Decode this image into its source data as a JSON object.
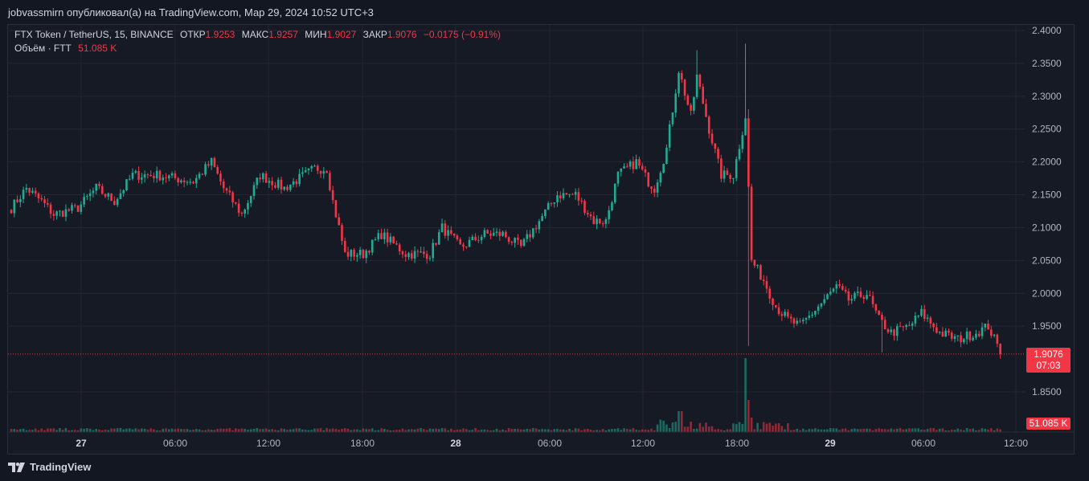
{
  "header": {
    "published": "jobvassmirn опубликовал(а) на TradingView.com, Мар 29, 2024 10:52 UTC+3"
  },
  "legend": {
    "symbol": "FTX Token / TetherUS, 15, BINANCE",
    "open_label": "ОТКР",
    "open": "1.9253",
    "high_label": "МАКС",
    "high": "1.9257",
    "low_label": "МИН",
    "low": "1.9027",
    "close_label": "ЗАКР",
    "close": "1.9076",
    "change": "−0.0175 (−0.91%)",
    "volume_label": "Объём · FTT",
    "volume": "51.085 K"
  },
  "price_tag": {
    "price": "1.9076",
    "countdown": "07:03"
  },
  "volume_tag": "51.085 K",
  "brand": "TradingView",
  "colors": {
    "up": "#22ab94",
    "down": "#f23645",
    "background": "#131722",
    "grid": "#242732"
  },
  "chart_data": {
    "type": "candlestick",
    "y_axis": {
      "ticks": [
        "2.4000",
        "2.3500",
        "2.3000",
        "2.2500",
        "2.2000",
        "2.1500",
        "2.1000",
        "2.0500",
        "2.0000",
        "1.9500",
        "1.8500"
      ],
      "range": [
        1.81,
        2.41
      ]
    },
    "x_axis": {
      "labels": [
        "27",
        "06:00",
        "12:00",
        "18:00",
        "28",
        "06:00",
        "12:00",
        "18:00",
        "29",
        "06:00",
        "12:00"
      ],
      "bold": [
        "27",
        "28",
        "29"
      ]
    },
    "last_price": 1.9076,
    "keyframes": [
      {
        "i": 0,
        "p": 2.13
      },
      {
        "i": 5,
        "p": 2.16
      },
      {
        "i": 10,
        "p": 2.14
      },
      {
        "i": 14,
        "p": 2.12
      },
      {
        "i": 22,
        "p": 2.13
      },
      {
        "i": 28,
        "p": 2.16
      },
      {
        "i": 34,
        "p": 2.14
      },
      {
        "i": 40,
        "p": 2.18
      },
      {
        "i": 48,
        "p": 2.18
      },
      {
        "i": 60,
        "p": 2.17
      },
      {
        "i": 66,
        "p": 2.2
      },
      {
        "i": 70,
        "p": 2.16
      },
      {
        "i": 76,
        "p": 2.12
      },
      {
        "i": 82,
        "p": 2.18
      },
      {
        "i": 90,
        "p": 2.16
      },
      {
        "i": 100,
        "p": 2.19
      },
      {
        "i": 104,
        "p": 2.19
      },
      {
        "i": 106,
        "p": 2.14
      },
      {
        "i": 110,
        "p": 2.06
      },
      {
        "i": 116,
        "p": 2.06
      },
      {
        "i": 122,
        "p": 2.09
      },
      {
        "i": 130,
        "p": 2.06
      },
      {
        "i": 138,
        "p": 2.06
      },
      {
        "i": 142,
        "p": 2.1
      },
      {
        "i": 148,
        "p": 2.07
      },
      {
        "i": 156,
        "p": 2.09
      },
      {
        "i": 162,
        "p": 2.09
      },
      {
        "i": 168,
        "p": 2.07
      },
      {
        "i": 174,
        "p": 2.11
      },
      {
        "i": 180,
        "p": 2.15
      },
      {
        "i": 186,
        "p": 2.15
      },
      {
        "i": 192,
        "p": 2.11
      },
      {
        "i": 196,
        "p": 2.11
      },
      {
        "i": 200,
        "p": 2.18
      },
      {
        "i": 206,
        "p": 2.2
      },
      {
        "i": 210,
        "p": 2.17
      },
      {
        "i": 212,
        "p": 2.16
      },
      {
        "i": 216,
        "p": 2.22
      },
      {
        "i": 220,
        "p": 2.34
      },
      {
        "i": 224,
        "p": 2.27
      },
      {
        "i": 226,
        "p": 2.33
      },
      {
        "i": 230,
        "p": 2.25
      },
      {
        "i": 234,
        "p": 2.18
      },
      {
        "i": 238,
        "p": 2.18
      },
      {
        "i": 242,
        "p": 2.27
      },
      {
        "i": 244,
        "p": 2.05
      },
      {
        "i": 248,
        "p": 2.02
      },
      {
        "i": 252,
        "p": 1.98
      },
      {
        "i": 256,
        "p": 1.96
      },
      {
        "i": 260,
        "p": 1.95
      },
      {
        "i": 264,
        "p": 1.97
      },
      {
        "i": 268,
        "p": 1.99
      },
      {
        "i": 272,
        "p": 2.01
      },
      {
        "i": 276,
        "p": 1.99
      },
      {
        "i": 282,
        "p": 2.0
      },
      {
        "i": 286,
        "p": 1.96
      },
      {
        "i": 290,
        "p": 1.94
      },
      {
        "i": 296,
        "p": 1.95
      },
      {
        "i": 300,
        "p": 1.97
      },
      {
        "i": 306,
        "p": 1.94
      },
      {
        "i": 312,
        "p": 1.93
      },
      {
        "i": 318,
        "p": 1.94
      },
      {
        "i": 322,
        "p": 1.95
      },
      {
        "i": 326,
        "p": 1.91
      }
    ]
  }
}
